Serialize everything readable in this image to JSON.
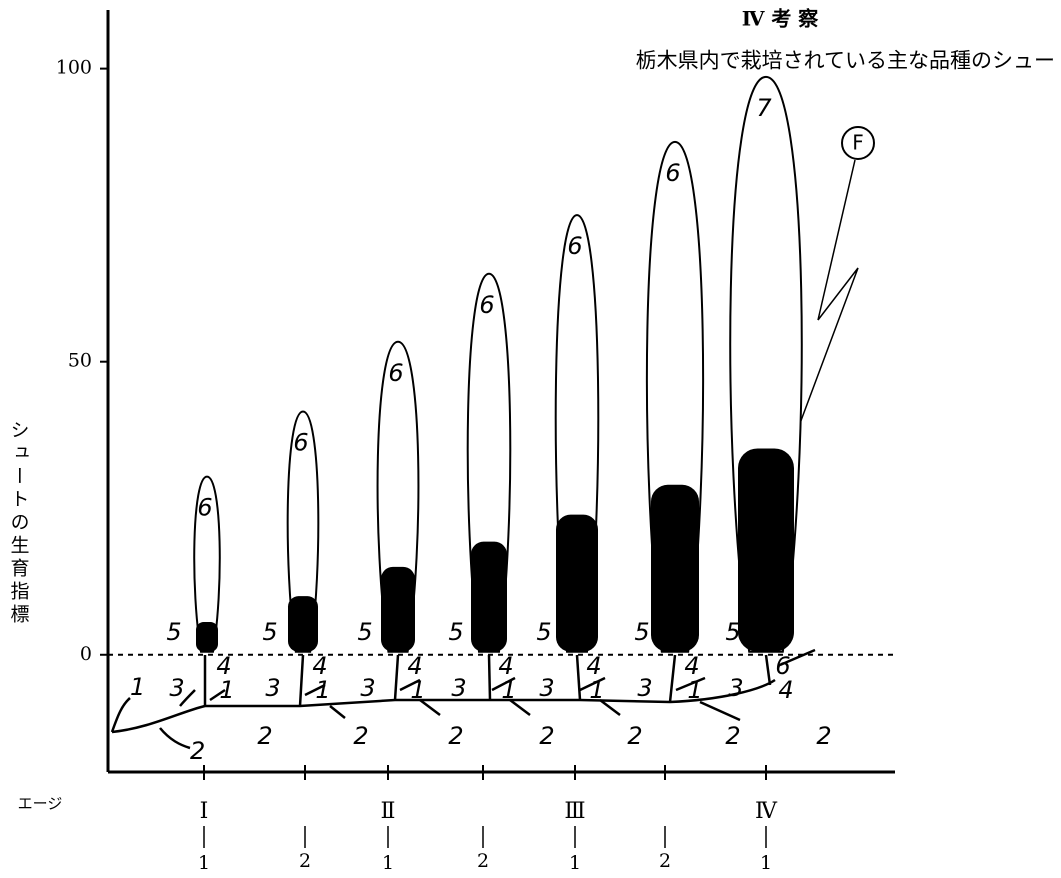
{
  "header": {
    "section": "Ⅳ 考 察",
    "subtitle": "栃木県内で栽培されている主な品種のシュー"
  },
  "y_axis": {
    "label": "シュートの生育指標",
    "ylim": [
      -20,
      110
    ],
    "yticks": [
      0,
      50,
      100
    ]
  },
  "x_axis": {
    "label": "エージ",
    "ages": [
      {
        "stage": "Ⅰ",
        "sub": "1"
      },
      {
        "stage": null,
        "sub": "2"
      },
      {
        "stage": "Ⅱ",
        "sub": "1"
      },
      {
        "stage": null,
        "sub": "2"
      },
      {
        "stage": "Ⅲ",
        "sub": "1"
      },
      {
        "stage": null,
        "sub": "2"
      },
      {
        "stage": "Ⅳ",
        "sub": "1"
      }
    ]
  },
  "shoots": [
    {
      "top_label": "6",
      "height": 30.4,
      "black": 5.6,
      "labels": [
        "5",
        "4",
        "3",
        "1",
        "2"
      ]
    },
    {
      "top_label": "6",
      "height": 41.5,
      "black": 10,
      "labels": [
        "5",
        "4",
        "3",
        "1",
        "2"
      ]
    },
    {
      "top_label": "6",
      "height": 53.4,
      "black": 15,
      "labels": [
        "5",
        "4",
        "3",
        "1",
        "2"
      ]
    },
    {
      "top_label": "6",
      "height": 65,
      "black": 19.3,
      "labels": [
        "5",
        "4",
        "3",
        "1",
        "2"
      ]
    },
    {
      "top_label": "6",
      "height": 75,
      "black": 23.9,
      "labels": [
        "5",
        "4",
        "3",
        "1",
        "2"
      ]
    },
    {
      "top_label": "6",
      "height": 87.5,
      "black": 29,
      "labels": [
        "5",
        "4",
        "3",
        "1",
        "2"
      ]
    },
    {
      "top_label": "7",
      "height": 98.6,
      "black": 35.2,
      "labels": [
        "5",
        "6",
        "3",
        "4",
        "2"
      ]
    }
  ],
  "root_labels": [
    "1",
    "2"
  ],
  "flag": "F"
}
